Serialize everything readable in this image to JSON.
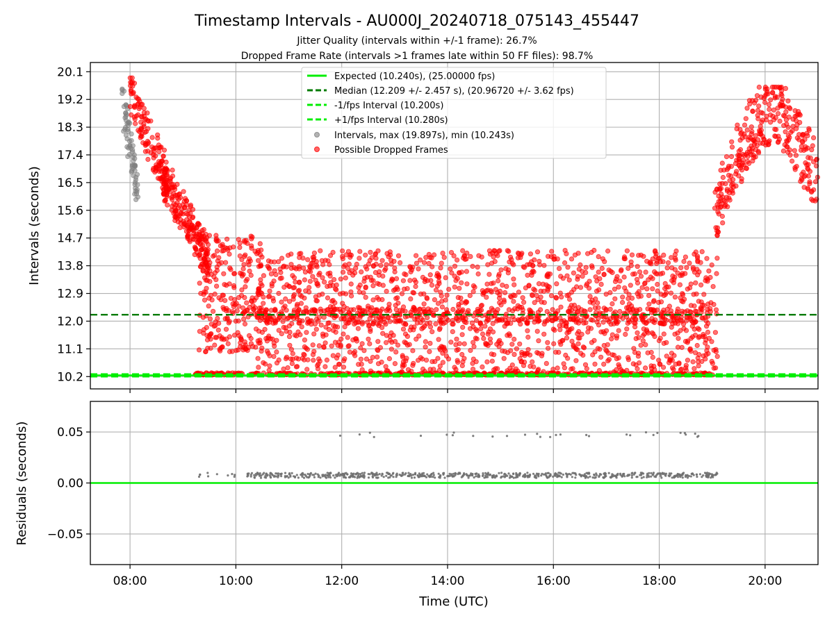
{
  "chart_data": {
    "type": "scatter",
    "title": "Timestamp Intervals - AU000J_20240718_075143_455447",
    "subtitle_lines": [
      "Jitter Quality (intervals within +/-1 frame): 26.7%",
      "Dropped Frame Rate (intervals >1 frames late within 50 FF files): 98.7%"
    ],
    "xlabel": "Time (UTC)",
    "x_ticks": [
      "08:00",
      "10:00",
      "12:00",
      "14:00",
      "16:00",
      "18:00",
      "20:00"
    ],
    "x_tick_hours": [
      8,
      10,
      12,
      14,
      16,
      18,
      20
    ],
    "x_range_hours": [
      7.25,
      21.0
    ],
    "grid": true,
    "legend_position": "upper center",
    "panels": [
      {
        "id": "intervals",
        "ylabel": "Intervals (seconds)",
        "ylim": [
          9.8,
          20.4
        ],
        "y_ticks": [
          10.2,
          11.1,
          12.0,
          12.9,
          13.8,
          14.7,
          15.6,
          16.5,
          17.4,
          18.3,
          19.2,
          20.1
        ],
        "y_tick_labels": [
          "10.2",
          "11.1",
          "12.0",
          "12.9",
          "13.8",
          "14.7",
          "15.6",
          "16.5",
          "17.4",
          "18.3",
          "19.2",
          "20.1"
        ],
        "reference_lines": [
          {
            "name": "Expected (10.240s), (25.00000 fps)",
            "y": 10.24,
            "color": "#00ee00",
            "style": "solid"
          },
          {
            "name": "Median (12.209 +/- 2.457 s), (20.96720 +/- 3.62 fps)",
            "y": 12.209,
            "color": "#007a00",
            "style": "dashed"
          },
          {
            "name": "-1/fps Interval (10.200s)",
            "y": 10.2,
            "color": "#00ee00",
            "style": "dashed"
          },
          {
            "name": "+1/fps Interval (10.280s)",
            "y": 10.28,
            "color": "#00ee00",
            "style": "dashed"
          }
        ],
        "series": [
          {
            "name": "Intervals, max (19.897s), min (10.243s)",
            "color": "#808080",
            "description_values": {
              "max": 19.897,
              "min": 10.243
            },
            "segments": [
              {
                "x_start_hours": 7.85,
                "x_end_hours": 8.15,
                "y_min": 15.7,
                "y_max": 19.7,
                "count": 70,
                "pattern": "descending"
              }
            ]
          },
          {
            "name": "Possible Dropped Frames",
            "color": "#ff0000",
            "segments": [
              {
                "x_start_hours": 8.0,
                "x_end_hours": 8.7,
                "y_min": 16.0,
                "y_max": 19.9,
                "count": 130,
                "pattern": "descending"
              },
              {
                "x_start_hours": 8.6,
                "x_end_hours": 9.5,
                "y_min": 13.5,
                "y_max": 17.2,
                "count": 220,
                "pattern": "descending"
              },
              {
                "x_start_hours": 9.3,
                "x_end_hours": 10.5,
                "y_min": 11.0,
                "y_max": 14.8,
                "count": 260,
                "pattern": "band"
              },
              {
                "x_start_hours": 10.4,
                "x_end_hours": 19.1,
                "y_min": 10.25,
                "y_max": 14.3,
                "count": 1500,
                "pattern": "band"
              },
              {
                "x_start_hours": 9.2,
                "x_end_hours": 19.05,
                "y_min": 10.25,
                "y_max": 10.32,
                "count": 420,
                "pattern": "floor"
              },
              {
                "x_start_hours": 10.5,
                "x_end_hours": 19.0,
                "y_min": 11.9,
                "y_max": 12.4,
                "count": 380,
                "pattern": "band"
              },
              {
                "x_start_hours": 19.05,
                "x_end_hours": 21.0,
                "y_min": 13.2,
                "y_max": 19.6,
                "count": 330,
                "pattern": "arc"
              }
            ]
          }
        ]
      },
      {
        "id": "residuals",
        "ylabel": "Residuals (seconds)",
        "ylim": [
          -0.08,
          0.08
        ],
        "y_ticks": [
          -0.05,
          0.0,
          0.05
        ],
        "y_tick_labels": [
          "−0.05",
          "0.00",
          "0.05"
        ],
        "reference_lines": [
          {
            "y": 0.0,
            "color": "#00ee00",
            "style": "solid"
          }
        ],
        "series": [
          {
            "name": "Residuals",
            "color": "#707070",
            "segments": [
              {
                "x_start_hours": 9.2,
                "x_end_hours": 10.0,
                "y_min": 0.006,
                "y_max": 0.01,
                "count": 10,
                "pattern": "band"
              },
              {
                "x_start_hours": 10.2,
                "x_end_hours": 19.1,
                "y_min": 0.005,
                "y_max": 0.01,
                "count": 650,
                "pattern": "band"
              },
              {
                "x_start_hours": 11.8,
                "x_end_hours": 18.9,
                "y_min": 0.045,
                "y_max": 0.05,
                "count": 30,
                "pattern": "band"
              }
            ]
          }
        ]
      }
    ]
  }
}
